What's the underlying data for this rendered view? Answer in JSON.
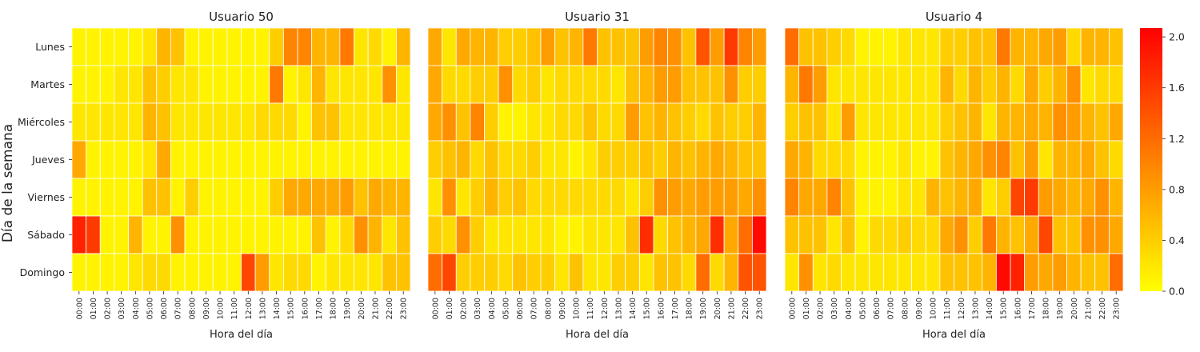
{
  "figure": {
    "ylabel": "Día de la semana",
    "xlabel": "Hora del día"
  },
  "chart_data": {
    "type": "heatmap",
    "days": [
      "Lunes",
      "Martes",
      "Miércoles",
      "Jueves",
      "Viernes",
      "Sábado",
      "Domingo"
    ],
    "hours": [
      "00:00",
      "01:00",
      "02:00",
      "03:00",
      "04:00",
      "05:00",
      "06:00",
      "07:00",
      "08:00",
      "09:00",
      "10:00",
      "11:00",
      "12:00",
      "13:00",
      "14:00",
      "15:00",
      "16:00",
      "17:00",
      "18:00",
      "19:00",
      "20:00",
      "21:00",
      "22:00",
      "23:00"
    ],
    "color_scale": {
      "vmin": 0.0,
      "vmax": 2.07,
      "low_color": "#ffff00",
      "mid_color": "#ff8000",
      "high_color": "#ff0000"
    },
    "colorbar_ticks": [
      "0.0",
      "0.4",
      "0.8",
      "1.2",
      "1.6",
      "2.0"
    ],
    "colorbar_tick_values": [
      0.0,
      0.4,
      0.8,
      1.2,
      1.6,
      2.0
    ],
    "panels": [
      {
        "title": "Usuario 50",
        "xlabel": "Hora del día",
        "values": [
          [
            0.1,
            0.1,
            0.1,
            0.1,
            0.1,
            0.2,
            0.6,
            0.5,
            0.1,
            0.1,
            0.1,
            0.1,
            0.1,
            0.1,
            0.4,
            1.0,
            1.0,
            0.6,
            0.6,
            1.1,
            0.2,
            0.3,
            0.1,
            0.6
          ],
          [
            0.1,
            0.1,
            0.1,
            0.2,
            0.2,
            0.5,
            0.4,
            0.2,
            0.2,
            0.1,
            0.1,
            0.1,
            0.1,
            0.1,
            1.1,
            0.1,
            0.2,
            0.6,
            0.2,
            0.2,
            0.2,
            0.2,
            0.9,
            0.2
          ],
          [
            0.2,
            0.2,
            0.2,
            0.2,
            0.2,
            0.6,
            0.5,
            0.2,
            0.2,
            0.2,
            0.2,
            0.2,
            0.2,
            0.3,
            0.3,
            0.3,
            0.1,
            0.5,
            0.5,
            0.2,
            0.2,
            0.2,
            0.2,
            0.2
          ],
          [
            0.7,
            0.1,
            0.1,
            0.1,
            0.1,
            0.2,
            0.7,
            0.1,
            0.1,
            0.1,
            0.1,
            0.1,
            0.1,
            0.1,
            0.1,
            0.1,
            0.1,
            0.1,
            0.1,
            0.1,
            0.1,
            0.1,
            0.1,
            0.1
          ],
          [
            0.1,
            0.1,
            0.1,
            0.1,
            0.1,
            0.5,
            0.5,
            0.1,
            0.4,
            0.1,
            0.1,
            0.1,
            0.1,
            0.1,
            0.4,
            0.7,
            0.7,
            0.7,
            0.7,
            0.8,
            0.5,
            0.7,
            0.6,
            0.6
          ],
          [
            1.8,
            1.6,
            0.1,
            0.1,
            0.6,
            0.1,
            0.1,
            0.9,
            0.1,
            0.1,
            0.1,
            0.1,
            0.1,
            0.1,
            0.1,
            0.1,
            0.1,
            0.5,
            0.1,
            0.3,
            0.9,
            0.6,
            0.2,
            0.5
          ],
          [
            0.1,
            0.1,
            0.1,
            0.1,
            0.2,
            0.3,
            0.3,
            0.1,
            0.1,
            0.1,
            0.1,
            0.1,
            1.5,
            0.8,
            0.2,
            0.3,
            0.3,
            0.1,
            0.2,
            0.2,
            0.2,
            0.2,
            0.5,
            0.5
          ]
        ]
      },
      {
        "title": "Usuario 31",
        "xlabel": "Hora del día",
        "values": [
          [
            0.7,
            0.2,
            0.7,
            0.6,
            0.6,
            0.4,
            0.4,
            0.5,
            0.8,
            0.5,
            0.6,
            1.1,
            0.5,
            0.5,
            0.5,
            0.8,
            1.0,
            0.9,
            0.5,
            1.4,
            0.8,
            1.6,
            1.0,
            0.8
          ],
          [
            0.7,
            0.3,
            0.3,
            0.4,
            0.4,
            0.9,
            0.3,
            0.4,
            0.2,
            0.3,
            0.3,
            0.3,
            0.3,
            0.2,
            0.5,
            0.6,
            0.8,
            0.8,
            0.5,
            0.5,
            0.5,
            0.9,
            0.4,
            0.4
          ],
          [
            0.7,
            0.9,
            0.5,
            1.0,
            0.4,
            0.1,
            0.1,
            0.2,
            0.2,
            0.3,
            0.3,
            0.5,
            0.3,
            0.3,
            0.8,
            0.5,
            0.6,
            0.5,
            0.4,
            0.3,
            0.5,
            0.4,
            0.4,
            0.6
          ],
          [
            0.4,
            0.5,
            0.6,
            0.3,
            0.5,
            0.3,
            0.3,
            0.4,
            0.2,
            0.2,
            0.1,
            0.2,
            0.4,
            0.4,
            0.4,
            0.5,
            0.4,
            0.6,
            0.5,
            0.6,
            0.7,
            0.6,
            0.5,
            0.5
          ],
          [
            0.2,
            0.9,
            0.2,
            0.4,
            0.6,
            0.4,
            0.5,
            0.3,
            0.3,
            0.3,
            0.3,
            0.3,
            0.3,
            0.3,
            0.2,
            0.4,
            0.9,
            0.8,
            0.7,
            0.8,
            0.8,
            0.8,
            0.7,
            0.9
          ],
          [
            0.4,
            0.3,
            0.9,
            0.4,
            0.2,
            0.2,
            0.2,
            0.2,
            0.2,
            0.1,
            0.1,
            0.2,
            0.2,
            0.2,
            0.5,
            1.7,
            0.3,
            0.5,
            0.6,
            0.7,
            1.7,
            0.7,
            1.2,
            2.0
          ],
          [
            1.2,
            1.5,
            0.4,
            0.4,
            0.4,
            0.3,
            0.5,
            0.4,
            0.4,
            0.2,
            0.5,
            0.2,
            0.2,
            0.4,
            0.4,
            0.2,
            0.5,
            0.5,
            0.3,
            1.2,
            0.3,
            0.6,
            1.4,
            1.4
          ]
        ]
      },
      {
        "title": "Usuario 4",
        "xlabel": "Hora del día",
        "values": [
          [
            1.2,
            0.5,
            0.5,
            0.4,
            0.3,
            0.1,
            0.1,
            0.1,
            0.2,
            0.2,
            0.2,
            0.4,
            0.4,
            0.5,
            0.5,
            1.1,
            0.6,
            0.6,
            0.7,
            0.8,
            0.3,
            0.6,
            0.6,
            0.5
          ],
          [
            0.6,
            1.1,
            0.8,
            0.2,
            0.2,
            0.2,
            0.2,
            0.2,
            0.2,
            0.2,
            0.2,
            0.6,
            0.3,
            0.6,
            0.4,
            0.6,
            0.3,
            0.7,
            0.4,
            0.6,
            0.9,
            0.2,
            0.3,
            0.3
          ],
          [
            0.4,
            0.5,
            0.5,
            0.2,
            0.8,
            0.2,
            0.2,
            0.2,
            0.2,
            0.2,
            0.2,
            0.4,
            0.5,
            0.6,
            0.2,
            0.6,
            0.6,
            0.7,
            0.6,
            0.9,
            0.8,
            0.6,
            0.5,
            0.7
          ],
          [
            0.7,
            0.6,
            0.3,
            0.3,
            0.3,
            0.1,
            0.1,
            0.1,
            0.2,
            0.1,
            0.1,
            0.5,
            0.6,
            0.7,
            0.9,
            1.0,
            0.5,
            0.8,
            0.2,
            0.6,
            0.6,
            0.7,
            0.5,
            0.3
          ],
          [
            1.0,
            0.7,
            0.7,
            1.0,
            0.5,
            0.1,
            0.1,
            0.1,
            0.2,
            0.2,
            0.6,
            0.5,
            0.6,
            0.7,
            0.2,
            0.4,
            1.5,
            1.6,
            0.8,
            0.7,
            0.6,
            0.7,
            0.9,
            0.6
          ],
          [
            0.5,
            0.5,
            0.5,
            0.2,
            0.5,
            0.1,
            0.3,
            0.3,
            0.4,
            0.3,
            0.3,
            0.7,
            0.9,
            0.4,
            1.1,
            0.6,
            0.5,
            0.7,
            1.5,
            0.5,
            0.5,
            0.9,
            0.9,
            0.7
          ],
          [
            0.2,
            0.9,
            0.2,
            0.3,
            0.2,
            0.2,
            0.2,
            0.2,
            0.2,
            0.2,
            0.2,
            0.5,
            0.5,
            0.5,
            0.6,
            2.0,
            1.8,
            0.8,
            0.7,
            0.8,
            0.6,
            0.5,
            0.5,
            1.2
          ]
        ]
      }
    ]
  }
}
